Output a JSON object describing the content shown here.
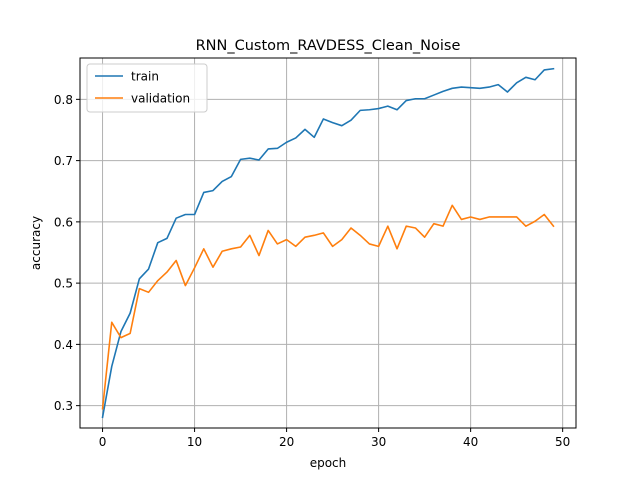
{
  "chart_data": {
    "type": "line",
    "title": "RNN_Custom_RAVDESS_Clean_Noise",
    "xlabel": "epoch",
    "ylabel": "accuracy",
    "xlim": [
      -2.45,
      51.45
    ],
    "ylim": [
      0.2635,
      0.8675
    ],
    "xticks": [
      0,
      10,
      20,
      30,
      40,
      50
    ],
    "yticks": [
      0.3,
      0.4,
      0.5,
      0.6,
      0.7,
      0.8
    ],
    "xtick_labels": [
      "0",
      "10",
      "20",
      "30",
      "40",
      "50"
    ],
    "ytick_labels": [
      "0.3",
      "0.4",
      "0.5",
      "0.6",
      "0.7",
      "0.8"
    ],
    "grid": true,
    "legend_position": "upper-left",
    "x": [
      0,
      1,
      2,
      3,
      4,
      5,
      6,
      7,
      8,
      9,
      10,
      11,
      12,
      13,
      14,
      15,
      16,
      17,
      18,
      19,
      20,
      21,
      22,
      23,
      24,
      25,
      26,
      27,
      28,
      29,
      30,
      31,
      32,
      33,
      34,
      35,
      36,
      37,
      38,
      39,
      40,
      41,
      42,
      43,
      44,
      45,
      46,
      47,
      48,
      49
    ],
    "series": [
      {
        "name": "train",
        "color": "#1f77b4",
        "values": [
          0.281,
          0.364,
          0.421,
          0.451,
          0.507,
          0.523,
          0.566,
          0.573,
          0.606,
          0.612,
          0.612,
          0.648,
          0.651,
          0.666,
          0.674,
          0.702,
          0.704,
          0.701,
          0.719,
          0.72,
          0.73,
          0.737,
          0.751,
          0.738,
          0.768,
          0.762,
          0.757,
          0.766,
          0.782,
          0.783,
          0.785,
          0.789,
          0.783,
          0.798,
          0.801,
          0.801,
          0.807,
          0.813,
          0.818,
          0.82,
          0.819,
          0.818,
          0.82,
          0.824,
          0.812,
          0.827,
          0.836,
          0.832,
          0.848,
          0.85
        ]
      },
      {
        "name": "validation",
        "color": "#ff7f0e",
        "values": [
          0.295,
          0.436,
          0.411,
          0.418,
          0.491,
          0.485,
          0.504,
          0.518,
          0.537,
          0.496,
          0.525,
          0.556,
          0.526,
          0.552,
          0.556,
          0.559,
          0.578,
          0.545,
          0.586,
          0.564,
          0.571,
          0.56,
          0.575,
          0.578,
          0.582,
          0.56,
          0.571,
          0.59,
          0.578,
          0.564,
          0.56,
          0.593,
          0.556,
          0.593,
          0.59,
          0.575,
          0.597,
          0.593,
          0.627,
          0.604,
          0.608,
          0.604,
          0.608,
          0.608,
          0.608,
          0.608,
          0.593,
          0.601,
          0.612,
          0.593
        ]
      }
    ]
  }
}
